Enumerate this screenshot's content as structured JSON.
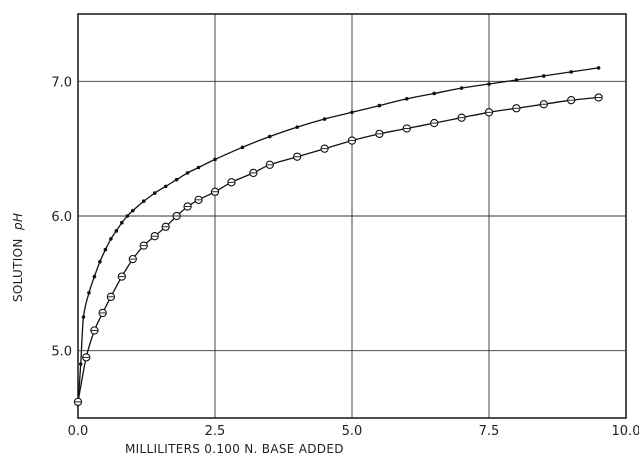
{
  "chart_data": {
    "type": "line",
    "xlabel": "MILLILITERS  0.100 N. BASE  ADDED",
    "ylabel": "SOLUTION",
    "ylabel_sub": "pH",
    "xlim": [
      0,
      10.0
    ],
    "ylim": [
      4.5,
      7.5
    ],
    "xticks": [
      0.0,
      2.5,
      5.0,
      7.5,
      10.0
    ],
    "xtick_labels": [
      "0.0",
      "2.5",
      "5.0",
      "7.5",
      "10.0"
    ],
    "yticks": [
      5.0,
      6.0,
      7.0
    ],
    "ytick_labels": [
      "5.0",
      "6.0",
      "7.0"
    ],
    "grid": true,
    "series": [
      {
        "marker": "dot",
        "x": [
          0.0,
          0.05,
          0.1,
          0.2,
          0.3,
          0.4,
          0.5,
          0.6,
          0.7,
          0.8,
          0.9,
          1.0,
          1.2,
          1.4,
          1.6,
          1.8,
          2.0,
          2.2,
          2.5,
          3.0,
          3.5,
          4.0,
          4.5,
          5.0,
          5.5,
          6.0,
          6.5,
          7.0,
          7.5,
          8.0,
          8.5,
          9.0,
          9.5
        ],
        "y": [
          4.6,
          4.9,
          5.25,
          5.43,
          5.55,
          5.66,
          5.75,
          5.83,
          5.89,
          5.95,
          6.0,
          6.04,
          6.11,
          6.17,
          6.22,
          6.27,
          6.32,
          6.36,
          6.42,
          6.51,
          6.59,
          6.66,
          6.72,
          6.77,
          6.82,
          6.87,
          6.91,
          6.95,
          6.98,
          7.01,
          7.04,
          7.07,
          7.1
        ]
      },
      {
        "marker": "circle",
        "x": [
          0.0,
          0.15,
          0.3,
          0.45,
          0.6,
          0.8,
          1.0,
          1.2,
          1.4,
          1.6,
          1.8,
          2.0,
          2.2,
          2.5,
          2.8,
          3.2,
          3.5,
          4.0,
          4.5,
          5.0,
          5.5,
          6.0,
          6.5,
          7.0,
          7.5,
          8.0,
          8.5,
          9.0,
          9.5
        ],
        "y": [
          4.62,
          4.95,
          5.15,
          5.28,
          5.4,
          5.55,
          5.68,
          5.78,
          5.85,
          5.92,
          6.0,
          6.07,
          6.12,
          6.18,
          6.25,
          6.32,
          6.38,
          6.44,
          6.5,
          6.56,
          6.61,
          6.65,
          6.69,
          6.73,
          6.77,
          6.8,
          6.83,
          6.86,
          6.88
        ]
      }
    ]
  }
}
